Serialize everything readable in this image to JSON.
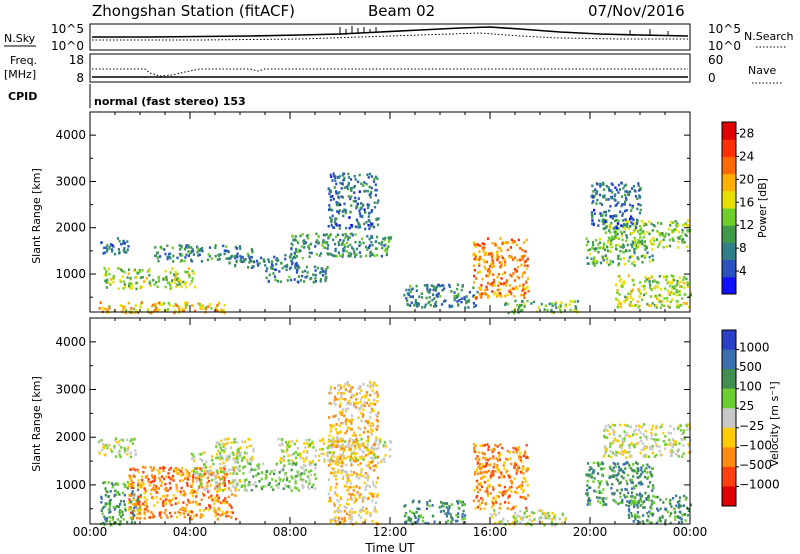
{
  "header": {
    "station": "Zhongshan Station (fitACF)",
    "beam": "Beam 02",
    "date": "07/Nov/2016"
  },
  "top_panels": {
    "nsky_label": "N.Sky",
    "nsearch_label": "N.Search",
    "freq_label_1": "Freq.",
    "freq_label_2": "[MHz]",
    "nave_label": "Nave",
    "cpid_label": "CPID",
    "cpid_text": "normal (fast stereo) 153",
    "nsky_ticks": [
      "10^5",
      "10^0"
    ],
    "nsearch_ticks": [
      "10^5",
      "10^0"
    ],
    "freq_ticks": [
      "18",
      "8"
    ],
    "nave_ticks": [
      "60",
      "0"
    ]
  },
  "chart_data": [
    {
      "type": "heatmap",
      "title": "",
      "xlabel": "Time UT",
      "ylabel": "Slant Range [km]",
      "x_ticks": [
        "00:00",
        "04:00",
        "08:00",
        "12:00",
        "16:00",
        "20:00",
        "00:00"
      ],
      "xlim": [
        0,
        24
      ],
      "ylim": [
        180,
        4500
      ],
      "y_ticks": [
        1000,
        2000,
        3000,
        4000
      ],
      "colorbar": {
        "label": "Power [dB]",
        "ticks": [
          4,
          8,
          12,
          16,
          20,
          24,
          28
        ],
        "range": [
          0,
          30
        ],
        "colors": [
          "#1010ff",
          "#2a52c0",
          "#2f7f8a",
          "#3f9a4a",
          "#6fcf2a",
          "#e8e000",
          "#ffb000",
          "#ff6a00",
          "#ff3000",
          "#e00000"
        ]
      },
      "regions": [
        {
          "t": [
            0.4,
            1.5
          ],
          "r": [
            1450,
            1800
          ],
          "level": 6
        },
        {
          "t": [
            0.5,
            4.2
          ],
          "r": [
            700,
            1150
          ],
          "level": 14
        },
        {
          "t": [
            0.3,
            5.5
          ],
          "r": [
            180,
            420
          ],
          "level": 19
        },
        {
          "t": [
            2.5,
            6.5
          ],
          "r": [
            1300,
            1650
          ],
          "level": 8
        },
        {
          "t": [
            5.5,
            8.5
          ],
          "r": [
            1150,
            1450
          ],
          "level": 7
        },
        {
          "t": [
            7.0,
            9.5
          ],
          "r": [
            850,
            1200
          ],
          "level": 7
        },
        {
          "t": [
            8.0,
            12.0
          ],
          "r": [
            1400,
            1900
          ],
          "level": 9
        },
        {
          "t": [
            9.5,
            11.5
          ],
          "r": [
            2000,
            3200
          ],
          "level": 6
        },
        {
          "t": [
            12.5,
            15.5
          ],
          "r": [
            300,
            800
          ],
          "level": 7
        },
        {
          "t": [
            15.3,
            17.5
          ],
          "r": [
            500,
            1800
          ],
          "level": 22
        },
        {
          "t": [
            16.5,
            19.5
          ],
          "r": [
            180,
            450
          ],
          "level": 12
        },
        {
          "t": [
            19.8,
            22.5
          ],
          "r": [
            1200,
            1800
          ],
          "level": 12
        },
        {
          "t": [
            20.5,
            24.0
          ],
          "r": [
            1600,
            2200
          ],
          "level": 13
        },
        {
          "t": [
            21.0,
            24.0
          ],
          "r": [
            300,
            1000
          ],
          "level": 15
        },
        {
          "t": [
            20.0,
            22.0
          ],
          "r": [
            2000,
            3000
          ],
          "level": 6
        }
      ]
    },
    {
      "type": "heatmap",
      "title": "",
      "xlabel": "Time UT",
      "ylabel": "Slant Range [km]",
      "x_ticks": [
        "00:00",
        "04:00",
        "08:00",
        "12:00",
        "16:00",
        "20:00",
        "00:00"
      ],
      "xlim": [
        0,
        24
      ],
      "ylim": [
        180,
        4500
      ],
      "y_ticks": [
        1000,
        2000,
        3000,
        4000
      ],
      "colorbar": {
        "label": "Velocity [m s⁻¹]",
        "ticks": [
          "1000",
          "500",
          "100",
          "25",
          "−25",
          "−100",
          "−500",
          "−1000"
        ],
        "colors": [
          "#2a40c8",
          "#3a6fb0",
          "#3f8f50",
          "#6ccf30",
          "#c8c8c8",
          "#ffcc00",
          "#ff8c10",
          "#ff4010",
          "#e00000"
        ]
      },
      "regions": [
        {
          "t": [
            0.3,
            1.8
          ],
          "r": [
            1600,
            2000
          ],
          "level": 4
        },
        {
          "t": [
            0.4,
            2.0
          ],
          "r": [
            180,
            1100
          ],
          "level": 2
        },
        {
          "t": [
            1.5,
            5.8
          ],
          "r": [
            300,
            1400
          ],
          "level": 6
        },
        {
          "t": [
            4.0,
            6.0
          ],
          "r": [
            900,
            1700
          ],
          "level": 4
        },
        {
          "t": [
            6.0,
            9.0
          ],
          "r": [
            900,
            1500
          ],
          "level": 3
        },
        {
          "t": [
            7.5,
            12.0
          ],
          "r": [
            1500,
            2000
          ],
          "level": 4
        },
        {
          "t": [
            9.5,
            11.5
          ],
          "r": [
            200,
            3200
          ],
          "level": 5
        },
        {
          "t": [
            12.5,
            15.0
          ],
          "r": [
            200,
            700
          ],
          "level": 2
        },
        {
          "t": [
            15.3,
            17.5
          ],
          "r": [
            500,
            1900
          ],
          "level": 6
        },
        {
          "t": [
            16.0,
            19.0
          ],
          "r": [
            180,
            500
          ],
          "level": 4
        },
        {
          "t": [
            19.8,
            22.5
          ],
          "r": [
            600,
            1500
          ],
          "level": 2
        },
        {
          "t": [
            20.5,
            24.0
          ],
          "r": [
            1600,
            2300
          ],
          "level": 4
        },
        {
          "t": [
            21.5,
            24.0
          ],
          "r": [
            200,
            800
          ],
          "level": 2
        },
        {
          "t": [
            5.0,
            6.5
          ],
          "r": [
            1500,
            2000
          ],
          "level": 4
        }
      ]
    }
  ]
}
